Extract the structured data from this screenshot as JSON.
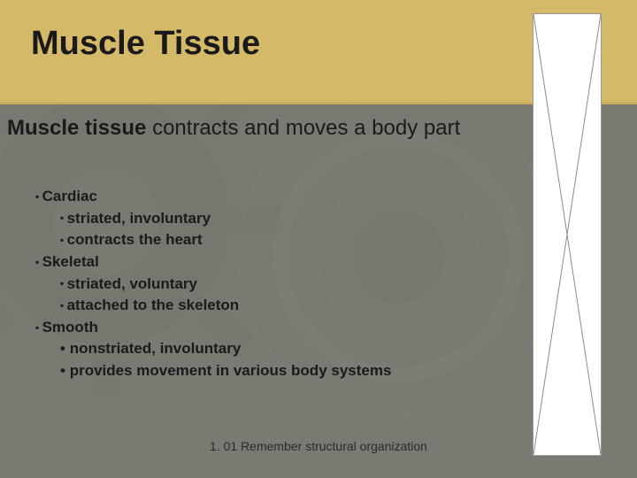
{
  "colors": {
    "headerBg": "#d4b968",
    "bodyBg": "#7a7a73",
    "text": "#1a1a1a",
    "placeholderBg": "#ffffff",
    "placeholderLine": "#888888"
  },
  "title": "Muscle Tissue",
  "subtitle": {
    "bold": "Muscle tissue",
    "rest": " contracts and moves a body part"
  },
  "items": [
    {
      "level": 1,
      "bullet": "square",
      "text": "Cardiac"
    },
    {
      "level": 2,
      "bullet": "square",
      "text": "striated, involuntary"
    },
    {
      "level": 2,
      "bullet": "square",
      "text": "contracts the heart"
    },
    {
      "level": 1,
      "bullet": "square",
      "text": "Skeletal"
    },
    {
      "level": 2,
      "bullet": "square",
      "text": "striated, voluntary"
    },
    {
      "level": 2,
      "bullet": "square",
      "text": "attached to the skeleton"
    },
    {
      "level": 1,
      "bullet": "square",
      "text": "Smooth"
    },
    {
      "level": 2,
      "bullet": "dot",
      "text": "nonstriated, involuntary"
    },
    {
      "level": 2,
      "bullet": "dot",
      "text": "provides movement in various body systems"
    }
  ],
  "footer": "1. 01 Remember structural organization"
}
